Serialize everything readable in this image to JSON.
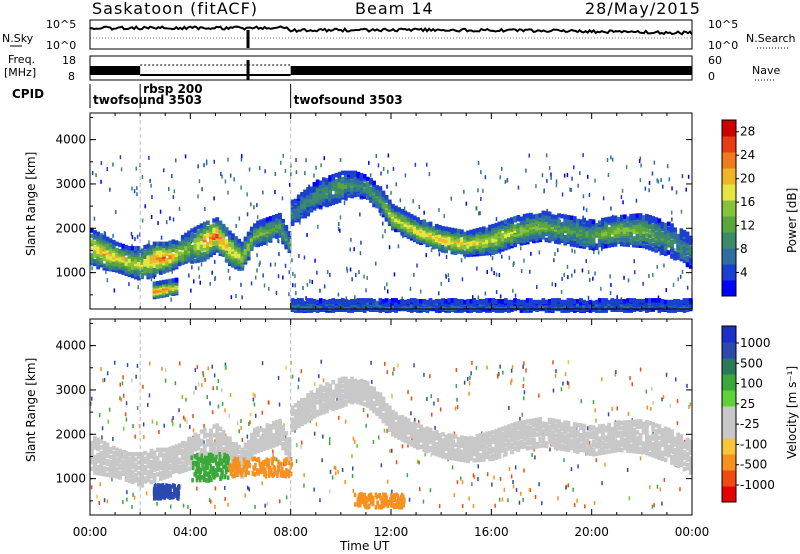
{
  "header": {
    "station": "Saskatoon (fitACF)",
    "beam": "Beam 14",
    "date": "28/May/2015"
  },
  "noise_panel": {
    "left_label": "N.Sky",
    "right_label": "N.Search",
    "left_ticks": [
      "10^5",
      "10^0"
    ],
    "right_ticks": [
      "10^5",
      "10^0"
    ]
  },
  "freq_panel": {
    "left_label_1": "Freq.",
    "left_label_2": "[MHz]",
    "left_ticks": [
      "18",
      "8"
    ],
    "right_ticks": [
      "60",
      "0"
    ],
    "right_label": "Nave"
  },
  "cpid_panel": {
    "label": "CPID",
    "programs": [
      {
        "name": "twofsound 3503",
        "start_hour": 0
      },
      {
        "name": "rbsp 200",
        "start_hour": 2
      },
      {
        "name": "twofsound 3503",
        "start_hour": 8
      }
    ]
  },
  "colors": {
    "power_scale": [
      "#0000ff",
      "#1b3fd0",
      "#2f6ea0",
      "#3c8a6a",
      "#5aa63c",
      "#86c23a",
      "#e6e640",
      "#f0b428",
      "#f07a1e",
      "#e83c14",
      "#cc0000"
    ],
    "velocity_scale": [
      "#e60000",
      "#f04a14",
      "#f6901e",
      "#f8c43a",
      "#c8c8c8",
      "#c8c8c8",
      "#5ed238",
      "#3aa83a",
      "#2a7a5a",
      "#2a4ab0",
      "#1a30c8"
    ]
  },
  "chart_data": [
    {
      "type": "heatmap",
      "title": "Power",
      "xlabel": "Time UT",
      "ylabel": "Slant Range [km]",
      "x_tick_labels": [
        "00:00",
        "04:00",
        "08:00",
        "12:00",
        "16:00",
        "20:00",
        "00:00"
      ],
      "xlim_hours": [
        0,
        24
      ],
      "ylim": [
        180,
        4600
      ],
      "y_tick_labels": [
        "1000",
        "2000",
        "3000",
        "4000"
      ],
      "y_ticks": [
        1000,
        2000,
        3000,
        4000
      ],
      "colorbar": {
        "label": "Power [dB]",
        "ticks": [
          4,
          8,
          12,
          16,
          20,
          24,
          28
        ],
        "tick_labels": [
          "4",
          "8",
          "12",
          "16",
          "20",
          "24",
          "28"
        ],
        "range": [
          0,
          30
        ]
      },
      "bands": [
        {
          "hours": [
            0,
            0.5,
            1,
            1.5,
            2,
            2.5,
            3,
            3.5,
            4,
            4.5,
            5,
            5.5,
            6,
            6.5,
            7,
            7.5,
            8
          ],
          "center_km": [
            1600,
            1500,
            1400,
            1300,
            1250,
            1350,
            1400,
            1500,
            1650,
            1750,
            1900,
            1600,
            1400,
            1900,
            2000,
            2100,
            1600
          ],
          "width_km": [
            800,
            700,
            600,
            600,
            700,
            700,
            600,
            600,
            700,
            800,
            700,
            700,
            600,
            500,
            500,
            500,
            400
          ],
          "peak_db": [
            18,
            22,
            20,
            18,
            16,
            24,
            26,
            18,
            14,
            24,
            26,
            20,
            18,
            14,
            14,
            12,
            10
          ]
        },
        {
          "hours": [
            8,
            9,
            10,
            10.5,
            11,
            11.5,
            12,
            13,
            14,
            15,
            16,
            17,
            18,
            19,
            20,
            21,
            22,
            23,
            24
          ],
          "center_km": [
            2400,
            2800,
            3000,
            3050,
            2950,
            2700,
            2300,
            2000,
            1800,
            1700,
            1800,
            2000,
            2100,
            2000,
            1900,
            2000,
            2000,
            1800,
            1500
          ],
          "width_km": [
            500,
            600,
            600,
            500,
            500,
            500,
            500,
            500,
            500,
            500,
            600,
            600,
            600,
            600,
            600,
            600,
            700,
            700,
            700
          ],
          "peak_db": [
            8,
            10,
            12,
            10,
            10,
            12,
            18,
            20,
            22,
            20,
            18,
            16,
            14,
            12,
            12,
            16,
            14,
            10,
            8
          ]
        },
        {
          "hours": [
            2.5,
            3,
            3.5
          ],
          "center_km": [
            650,
            700,
            750
          ],
          "width_km": [
            300,
            300,
            300
          ],
          "peak_db": [
            26,
            24,
            18
          ]
        },
        {
          "hours": [
            8,
            12,
            16,
            20,
            24
          ],
          "center_km": [
            300,
            300,
            300,
            300,
            300
          ],
          "width_km": [
            250,
            250,
            250,
            250,
            250
          ],
          "peak_db": [
            6,
            6,
            5,
            5,
            5
          ]
        }
      ]
    },
    {
      "type": "heatmap",
      "title": "Velocity",
      "xlabel": "Time UT",
      "ylabel": "Slant Range [km]",
      "x_tick_labels": [
        "00:00",
        "04:00",
        "08:00",
        "12:00",
        "16:00",
        "20:00",
        "00:00"
      ],
      "xlim_hours": [
        0,
        24
      ],
      "ylim": [
        180,
        4600
      ],
      "y_tick_labels": [
        "1000",
        "2000",
        "3000",
        "4000"
      ],
      "y_ticks": [
        1000,
        2000,
        3000,
        4000
      ],
      "colorbar": {
        "label": "Velocity [m s⁻¹]",
        "tick_labels": [
          "1000",
          "500",
          "100",
          "25",
          "-25",
          "-100",
          "-500",
          "-1000"
        ]
      },
      "features": [
        {
          "hours": [
            2.5,
            3.5
          ],
          "km": [
            600,
            900
          ],
          "velocity": 400
        },
        {
          "hours": [
            4,
            5.5
          ],
          "km": [
            1000,
            1600
          ],
          "velocity": 150
        },
        {
          "hours": [
            5.5,
            8
          ],
          "km": [
            1100,
            1500
          ],
          "velocity": -120
        },
        {
          "hours": [
            10.5,
            12.5
          ],
          "km": [
            400,
            700
          ],
          "velocity": -90
        },
        {
          "hours": [
            0,
            24
          ],
          "km": [
            1200,
            3000
          ],
          "velocity": 0
        }
      ]
    }
  ]
}
